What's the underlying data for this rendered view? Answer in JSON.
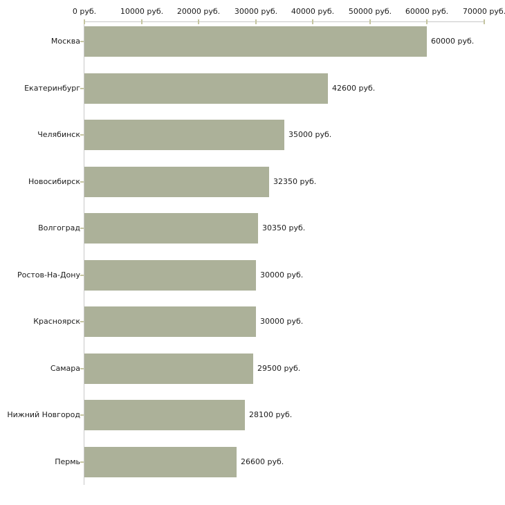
{
  "chart_data": {
    "type": "bar",
    "orientation": "horizontal",
    "title": "",
    "xlabel": "",
    "ylabel": "",
    "unit": "руб.",
    "grid": false,
    "legend": false,
    "categories": [
      "Москва",
      "Екатеринбург",
      "Челябинск",
      "Новосибирск",
      "Волгоград",
      "Ростов-На-Дону",
      "Красноярск",
      "Самара",
      "Нижний Новгород",
      "Пермь"
    ],
    "values": [
      60000,
      42600,
      35000,
      32350,
      30350,
      30000,
      30000,
      29500,
      28100,
      26600
    ],
    "value_labels": [
      "60000 руб.",
      "42600 руб.",
      "35000 руб.",
      "32350 руб.",
      "30350 руб.",
      "30000 руб.",
      "30000 руб.",
      "29500 руб.",
      "28100 руб.",
      "26600 руб."
    ],
    "x_axis": {
      "position": "top",
      "xlim": [
        0,
        70000
      ],
      "ticks": [
        0,
        10000,
        20000,
        30000,
        40000,
        50000,
        60000,
        70000
      ],
      "tick_labels": [
        "0 руб.",
        "10000 руб.",
        "20000 руб.",
        "30000 руб.",
        "40000 руб.",
        "50000 руб.",
        "60000 руб.",
        "70000 руб."
      ]
    }
  },
  "colors": {
    "background": "#ffffff",
    "bar_fill": "#acb199",
    "axis_line": "#c8c8c8",
    "tick_mark": "#c5c5a0",
    "text": "#1a1a1a"
  }
}
